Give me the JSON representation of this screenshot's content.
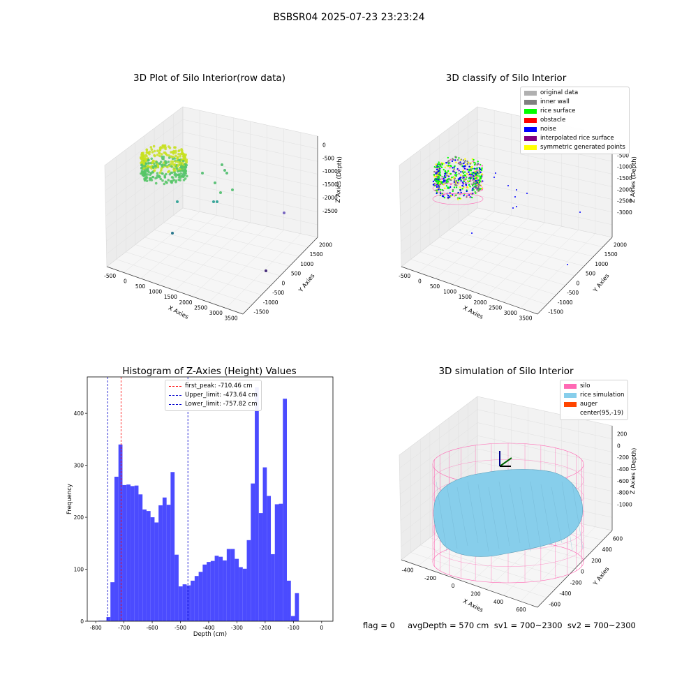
{
  "figure": {
    "suptitle": "BSBSR04 2025-07-23 23:23:24",
    "status_line": "flag = 0     avgDepth = 570 cm  sv1 = 700~2300  sv2 = 700~2300"
  },
  "colors": {
    "hist_bar": "#4b4bff",
    "first_peak_line": "#ff0000",
    "limit_lines": "#0000cc"
  },
  "chart_data": [
    {
      "type": "scatter",
      "title": "3D Plot of Silo Interior(row data)",
      "xlabel": "X Axies",
      "ylabel": "Y Axies",
      "zlabel": "Z Axies (Depth)",
      "xticks": [
        "-500",
        "0",
        "500",
        "1000",
        "1500",
        "2000",
        "2500",
        "3000",
        "3500"
      ],
      "yticks": [
        "-1500",
        "-1000",
        "-500",
        "0",
        "500",
        "1000",
        "1500",
        "2000"
      ],
      "zticks": [
        "0",
        "-500",
        "-1000",
        "-1500",
        "-2000",
        "-2500"
      ],
      "colormap": "viridis"
    },
    {
      "type": "scatter",
      "title": "3D classify of Silo Interior",
      "xlabel": "X Axies",
      "ylabel": "Y Axies",
      "zlabel": "Z Axies (Depth)",
      "xticks": [
        "-500",
        "0",
        "500",
        "1000",
        "1500",
        "2000",
        "2500",
        "3000",
        "3500"
      ],
      "yticks": [
        "-1500",
        "-1000",
        "-500",
        "0",
        "500",
        "1000",
        "1500",
        "2000"
      ],
      "zticks": [
        "0",
        "-500",
        "-1000",
        "-1500",
        "-2000",
        "-2500",
        "-3000"
      ],
      "legend": [
        {
          "label": "original data",
          "color": "#b0b0b0"
        },
        {
          "label": "inner wall",
          "color": "#808080"
        },
        {
          "label": "rice surface",
          "color": "#00ff00"
        },
        {
          "label": "obstacle",
          "color": "#ff0000"
        },
        {
          "label": "noise",
          "color": "#0000ff"
        },
        {
          "label": "interpolated rice surface",
          "color": "#800080"
        },
        {
          "label": "symmetric generated points",
          "color": "#ffff00"
        }
      ]
    },
    {
      "type": "bar",
      "title": "Histogram of Z-Axies (Height) Values",
      "xlabel": "Depth (cm)",
      "ylabel": "Frequency",
      "xlim": [
        -830,
        40
      ],
      "ylim": [
        0,
        470
      ],
      "xticks": [
        -800,
        -700,
        -600,
        -500,
        -400,
        -300,
        -200,
        -100,
        0
      ],
      "yticks": [
        0,
        100,
        200,
        300,
        400
      ],
      "bin_width": 14.2,
      "bin_start": -790.5,
      "values": [
        1,
        1,
        8,
        75,
        278,
        340,
        262,
        263,
        260,
        261,
        244,
        215,
        212,
        200,
        190,
        223,
        238,
        224,
        287,
        128,
        67,
        71,
        69,
        78,
        87,
        95,
        109,
        114,
        116,
        126,
        124,
        117,
        139,
        139,
        120,
        104,
        101,
        156,
        265,
        450,
        208,
        296,
        241,
        129,
        225,
        226,
        428,
        78,
        10,
        54
      ],
      "lines": [
        {
          "label": "first_peak: -710.46 cm",
          "x": -710.46,
          "color": "#ff0000"
        },
        {
          "label": "Upper_limit: -473.64 cm",
          "x": -473.64,
          "color": "#0000cc"
        },
        {
          "label": "Lower_limit: -757.82 cm",
          "x": -757.82,
          "color": "#0000cc"
        }
      ],
      "legend_position": "upper center"
    },
    {
      "type": "scatter",
      "title": "3D simulation of Silo Interior",
      "xlabel": "X Axies",
      "ylabel": "Y Axies",
      "zlabel": "Z Axies (Depth)",
      "xticks": [
        "-400",
        "-200",
        "0",
        "200",
        "400",
        "600"
      ],
      "yticks": [
        "-600",
        "-400",
        "-200",
        "0",
        "200",
        "400",
        "600"
      ],
      "zticks": [
        "200",
        "0",
        "-200",
        "-400",
        "-600",
        "-800",
        "-1000"
      ],
      "legend": [
        {
          "label": "silo",
          "color": "#ff69b4"
        },
        {
          "label": "rice simulation",
          "color": "#87ceeb"
        },
        {
          "label": "auger",
          "color": "#ff4500"
        },
        {
          "label": "center(95,-19)",
          "color": "#ffffff"
        }
      ]
    }
  ]
}
